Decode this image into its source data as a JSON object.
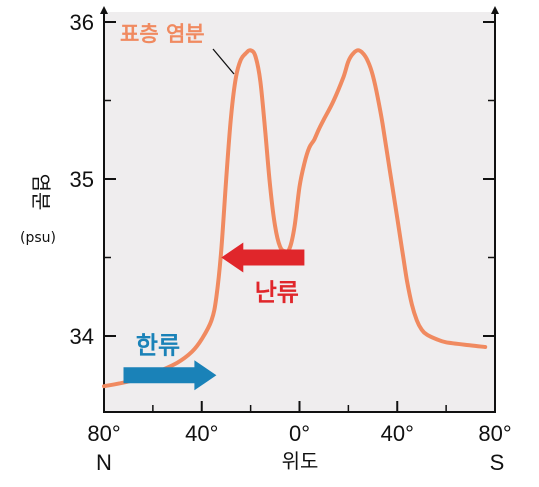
{
  "chart_data": {
    "type": "line",
    "y_title": "염분",
    "y_unit": "(psu)",
    "x_title": "위도",
    "ylim": [
      33.55,
      36.1
    ],
    "xlim": [
      -80,
      80
    ],
    "y_ticks": [
      34,
      35,
      36
    ],
    "y_tick_labels": [
      "34",
      "35",
      "36"
    ],
    "y_minor_ticks": [
      34.5,
      35.5
    ],
    "x_ticks": [
      -80,
      -40,
      0,
      40,
      80
    ],
    "x_tick_labels": [
      "80°",
      "40°",
      "0°",
      "40°",
      "80°"
    ],
    "x_minor_ticks": [
      -60,
      -20,
      20,
      60
    ],
    "x_end_labels": [
      "N",
      "S"
    ],
    "series": [
      {
        "name": "표층 염분",
        "color": "#f08a60",
        "x": [
          -80,
          -70,
          -60,
          -50,
          -44,
          -40,
          -36,
          -34,
          -32,
          -30,
          -28,
          -26,
          -24,
          -22,
          -20,
          -18,
          -16,
          -14,
          -12,
          -10,
          -8,
          -6,
          -4,
          -2,
          0,
          2,
          4,
          6,
          8,
          10,
          14,
          18,
          20,
          22,
          24,
          26,
          28,
          30,
          32,
          34,
          36,
          38,
          40,
          42,
          44,
          46,
          48,
          50,
          52,
          56,
          60,
          70,
          76
        ],
        "y": [
          33.68,
          33.71,
          33.76,
          33.83,
          33.9,
          33.98,
          34.1,
          34.25,
          34.55,
          35.0,
          35.4,
          35.65,
          35.76,
          35.8,
          35.82,
          35.78,
          35.62,
          35.3,
          34.95,
          34.7,
          34.57,
          34.54,
          34.56,
          34.7,
          34.95,
          35.1,
          35.2,
          35.25,
          35.32,
          35.38,
          35.5,
          35.65,
          35.75,
          35.8,
          35.82,
          35.8,
          35.75,
          35.66,
          35.52,
          35.35,
          35.15,
          34.95,
          34.75,
          34.55,
          34.35,
          34.2,
          34.1,
          34.04,
          34.01,
          33.98,
          33.96,
          33.94,
          33.93
        ]
      }
    ],
    "annotations": {
      "cold_current": {
        "label": "한류",
        "color": "#1a82b8",
        "x_from": -72,
        "x_to": -34,
        "y": 33.75
      },
      "warm_current": {
        "label": "난류",
        "color": "#e0262b",
        "x_from": 2,
        "x_to": -32,
        "y": 34.5
      }
    },
    "colors": {
      "plot_background": "#efedee",
      "axis": "#111111"
    }
  }
}
